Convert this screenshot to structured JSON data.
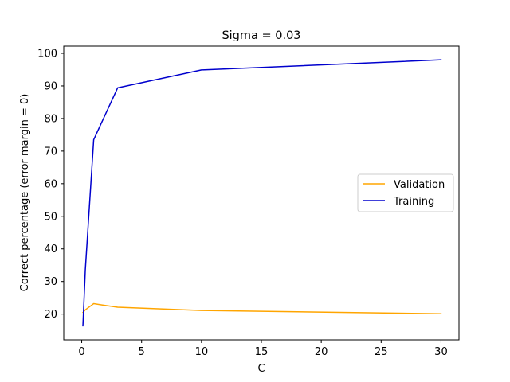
{
  "chart_data": {
    "type": "line",
    "title": "Sigma = 0.03",
    "xlabel": "C",
    "ylabel": "Correct percentage (error margin = 0)",
    "xlim": [
      -1.5,
      31.5
    ],
    "ylim": [
      12.1,
      102.2
    ],
    "xticks": [
      0,
      5,
      10,
      15,
      20,
      25,
      30
    ],
    "yticks": [
      20,
      30,
      40,
      50,
      60,
      70,
      80,
      90,
      100
    ],
    "grid": false,
    "legend_position": "center-right",
    "series": [
      {
        "name": "Validation",
        "color": "#ffa500",
        "x": [
          0.1,
          0.3,
          1,
          3,
          10,
          30
        ],
        "y": [
          20.5,
          21.3,
          23.2,
          22.1,
          21.1,
          20.1
        ]
      },
      {
        "name": "Training",
        "color": "#0000cd",
        "x": [
          0.1,
          0.3,
          1,
          3,
          10,
          30
        ],
        "y": [
          16.4,
          33.5,
          73.5,
          89.4,
          94.9,
          98.0
        ]
      }
    ]
  }
}
